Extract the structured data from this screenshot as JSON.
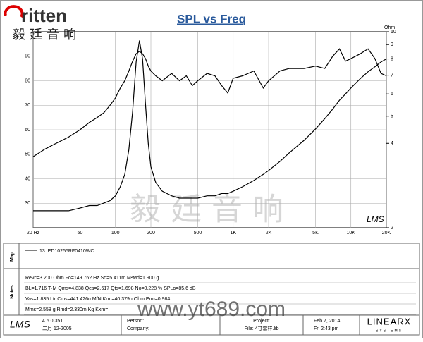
{
  "logo": {
    "brand": "ritten",
    "chinese": "毅廷音响"
  },
  "chart_data": {
    "type": "line",
    "title": "SPL vs Freq",
    "y2_label": "Ohm",
    "x": [
      20,
      25,
      30,
      40,
      50,
      60,
      70,
      80,
      90,
      100,
      110,
      120,
      130,
      140,
      150,
      160,
      170,
      180,
      190,
      200,
      220,
      250,
      300,
      350,
      400,
      450,
      500,
      600,
      700,
      800,
      900,
      1000,
      1200,
      1500,
      1800,
      2000,
      2500,
      3000,
      4000,
      5000,
      6000,
      7000,
      8000,
      9000,
      10000,
      12000,
      14000,
      16000,
      18000,
      20000
    ],
    "series": [
      {
        "name": "13: ED10255RF0410WC",
        "color": "#000000",
        "values": [
          49,
          52,
          54,
          57,
          60,
          63,
          65,
          67,
          70,
          73,
          77,
          80,
          84,
          88,
          91,
          92,
          91,
          89,
          86,
          84,
          82,
          80,
          83,
          80,
          82,
          78,
          80,
          83,
          82,
          78,
          75,
          81,
          82,
          84,
          77,
          80,
          84,
          85,
          85,
          86,
          85,
          90,
          93,
          88,
          89,
          91,
          93,
          89,
          83,
          82
        ]
      },
      {
        "color": "#000000",
        "axis": "y2",
        "values": [
          2.3,
          2.3,
          2.3,
          2.3,
          2.35,
          2.4,
          2.4,
          2.45,
          2.5,
          2.6,
          2.8,
          3.1,
          3.8,
          5.2,
          7.8,
          9.3,
          8,
          5.5,
          4,
          3.3,
          2.9,
          2.7,
          2.6,
          2.55,
          2.55,
          2.55,
          2.55,
          2.6,
          2.6,
          2.65,
          2.65,
          2.7,
          2.8,
          2.95,
          3.1,
          3.2,
          3.45,
          3.7,
          4.1,
          4.5,
          4.9,
          5.3,
          5.7,
          6,
          6.3,
          6.8,
          7.2,
          7.5,
          7.8,
          8
        ]
      }
    ],
    "xscale": "log",
    "xlim": [
      20,
      20000
    ],
    "xticks": [
      {
        "value": 20,
        "label": "20 Hz"
      },
      50,
      100,
      200,
      500,
      {
        "value": 1000,
        "label": "1K"
      },
      {
        "value": 2000,
        "label": "2K"
      },
      {
        "value": 5000,
        "label": "5K"
      },
      {
        "value": 10000,
        "label": "10K"
      },
      {
        "value": 20000,
        "label": "20K"
      }
    ],
    "ylim": [
      20,
      100
    ],
    "yticks": [
      30,
      40,
      50,
      60,
      70,
      80,
      90
    ],
    "y2scale": "log",
    "y2lim": [
      2,
      10
    ],
    "y2ticks": [
      2,
      4,
      5,
      6,
      7,
      8,
      9,
      10
    ],
    "grid": true
  },
  "watermark": {
    "chinese": "毅廷音响",
    "url": "www.yt689.com",
    "mark": "LMS"
  },
  "panels": {
    "map_label": "Map",
    "notes_label": "Notes",
    "notes": [
      "Revc=3.200 Ohm  Fo=149.762 Hz  Sd=5.411m M²Md=1.900 g",
      "BL=1.716 T·M  Qms=4.838  Qes=2.617  Qts=1.698  No=0.228 %  SPLo=85.6 dB",
      "Vas=1.835 Ltr  Cms=441.426u M/N  Krm=40.379u Ohm  Erm=0.984",
      "Mms=2.558 g  Rmd=2.330m Kg  Kxm="
    ]
  },
  "footer": {
    "logo": "LMS",
    "version": "4.5.0.351",
    "build_date": "二月 12-2005",
    "person": "Person:",
    "company": "Company:",
    "project": "Project:",
    "file": "File: 4寸套样.lib",
    "date": "Feb  7, 2014",
    "time": "Fri  2:43 pm",
    "brand": "LINEARX",
    "brand_sub": "SYSTEMS"
  }
}
